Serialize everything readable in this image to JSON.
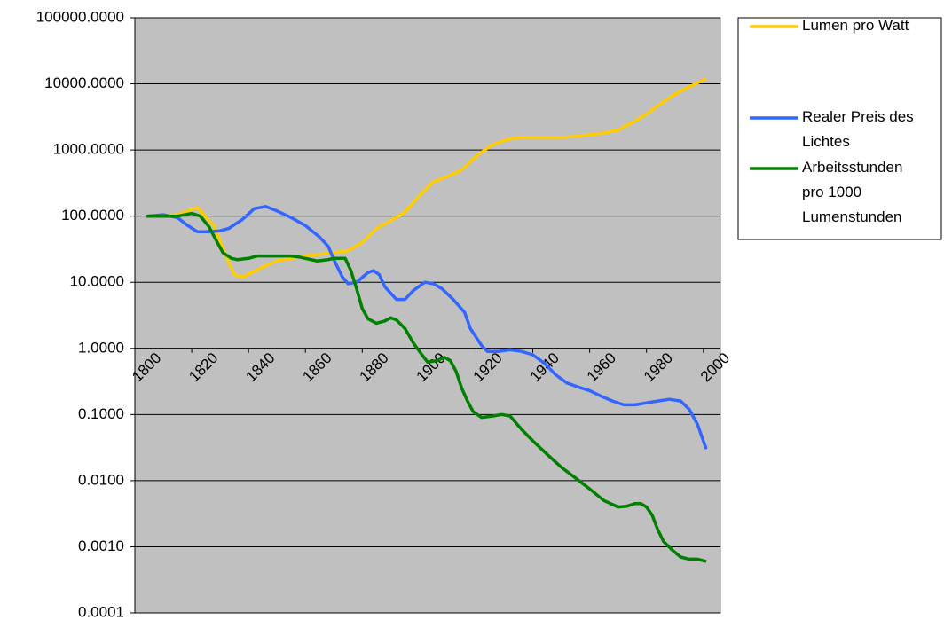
{
  "chart_data": {
    "type": "line",
    "log_y": true,
    "grid": true,
    "legend": "right",
    "xlim": [
      1800,
      2006
    ],
    "xticks": [
      1800,
      1820,
      1840,
      1860,
      1880,
      1900,
      1920,
      1940,
      1960,
      1980,
      2000
    ],
    "ylim": [
      0.0001,
      100000
    ],
    "yticks": [
      {
        "value": 0.0001,
        "label": "0.0001"
      },
      {
        "value": 0.001,
        "label": "0.0010"
      },
      {
        "value": 0.01,
        "label": "0.0100"
      },
      {
        "value": 0.1,
        "label": "0.1000"
      },
      {
        "value": 1,
        "label": "1.0000"
      },
      {
        "value": 10,
        "label": "10.0000"
      },
      {
        "value": 100,
        "label": "100.0000"
      },
      {
        "value": 1000,
        "label": "1000.0000"
      },
      {
        "value": 10000,
        "label": "10000.0000"
      },
      {
        "value": 100000,
        "label": "100000.0000"
      }
    ],
    "series": [
      {
        "name": "Lumen pro Watt",
        "color": "#ffcc00",
        "x": [
          1804,
          1815,
          1822,
          1828,
          1832,
          1835,
          1838,
          1845,
          1850,
          1860,
          1870,
          1875,
          1880,
          1885,
          1890,
          1895,
          1900,
          1905,
          1910,
          1915,
          1920,
          1925,
          1930,
          1935,
          1940,
          1950,
          1955,
          1960,
          1965,
          1970,
          1975,
          1980,
          1985,
          1990,
          1995,
          2001
        ],
        "values": [
          100,
          105,
          135,
          70,
          25,
          13,
          12,
          17,
          21,
          25,
          28,
          30,
          40,
          65,
          85,
          115,
          200,
          330,
          400,
          500,
          800,
          1150,
          1400,
          1550,
          1550,
          1550,
          1600,
          1700,
          1800,
          2000,
          2600,
          3500,
          5000,
          7000,
          9000,
          12000
        ]
      },
      {
        "name": "Realer Preis des Lichtes",
        "color": "#3366ff",
        "x": [
          1804,
          1810,
          1815,
          1818,
          1822,
          1826,
          1830,
          1833,
          1838,
          1842,
          1846,
          1850,
          1855,
          1860,
          1865,
          1868,
          1870,
          1873,
          1875,
          1878,
          1882,
          1884,
          1886,
          1888,
          1892,
          1895,
          1898,
          1902,
          1905,
          1908,
          1912,
          1916,
          1918,
          1922,
          1924,
          1928,
          1932,
          1936,
          1940,
          1944,
          1948,
          1952,
          1956,
          1960,
          1964,
          1968,
          1972,
          1976,
          1980,
          1984,
          1988,
          1992,
          1995,
          1998,
          2001
        ],
        "values": [
          100,
          105,
          95,
          75,
          58,
          58,
          60,
          65,
          90,
          130,
          140,
          120,
          95,
          72,
          48,
          35,
          22,
          12,
          9.5,
          10,
          14,
          15,
          13,
          8.5,
          5.5,
          5.5,
          7.5,
          10,
          9.5,
          8,
          5.5,
          3.5,
          2,
          1.1,
          0.9,
          0.9,
          0.95,
          0.9,
          0.8,
          0.6,
          0.4,
          0.3,
          0.26,
          0.23,
          0.19,
          0.16,
          0.14,
          0.14,
          0.15,
          0.16,
          0.17,
          0.16,
          0.12,
          0.07,
          0.03
        ]
      },
      {
        "name": "Arbeitsstunden pro 1000 Lumenstunden",
        "color": "#008000",
        "x": [
          1804,
          1815,
          1820,
          1823,
          1826,
          1829,
          1831,
          1834,
          1836,
          1840,
          1843,
          1850,
          1855,
          1858,
          1862,
          1864,
          1868,
          1870,
          1874,
          1876,
          1878,
          1880,
          1882,
          1885,
          1888,
          1890,
          1892,
          1895,
          1898,
          1901,
          1903,
          1906,
          1909,
          1911,
          1913,
          1915,
          1917,
          1919,
          1922,
          1926,
          1929,
          1932,
          1936,
          1940,
          1945,
          1950,
          1955,
          1960,
          1965,
          1970,
          1973,
          1976,
          1978,
          1980,
          1982,
          1984,
          1986,
          1989,
          1992,
          1995,
          1998,
          2001
        ],
        "values": [
          100,
          100,
          110,
          100,
          70,
          40,
          28,
          23,
          22,
          23,
          25,
          25,
          25,
          24,
          22,
          21,
          22,
          23,
          23,
          15,
          8,
          4,
          2.8,
          2.4,
          2.6,
          2.9,
          2.7,
          2,
          1.2,
          0.8,
          0.62,
          0.65,
          0.73,
          0.65,
          0.45,
          0.25,
          0.16,
          0.11,
          0.09,
          0.095,
          0.1,
          0.095,
          0.06,
          0.04,
          0.025,
          0.016,
          0.011,
          0.0075,
          0.005,
          0.004,
          0.0041,
          0.0045,
          0.0045,
          0.004,
          0.003,
          0.0018,
          0.0012,
          0.0009,
          0.0007,
          0.00065,
          0.00065,
          0.0006
        ]
      }
    ]
  }
}
